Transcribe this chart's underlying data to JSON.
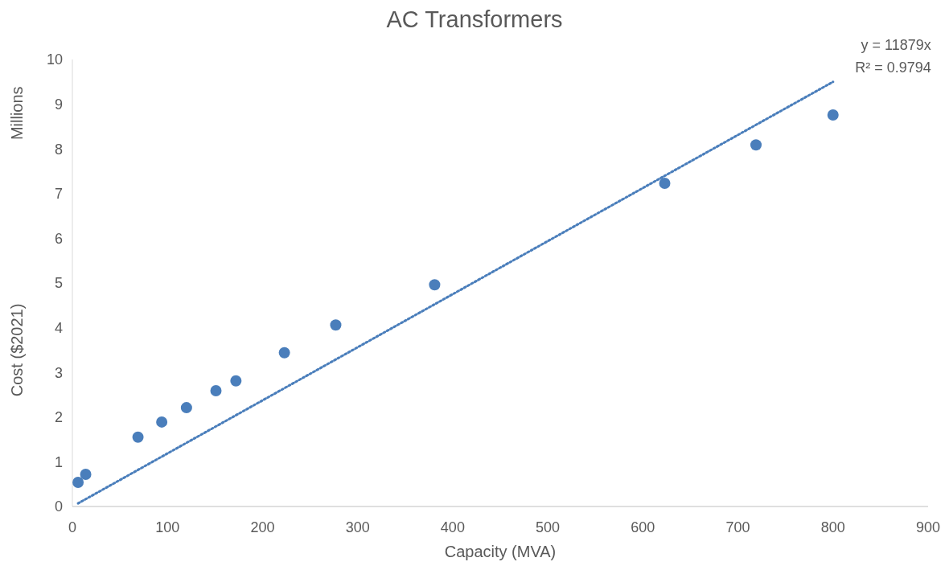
{
  "chart_data": {
    "type": "scatter",
    "title": "AC Transformers",
    "xlabel": "Capacity (MVA)",
    "ylabel": "Cost ($2021)",
    "annotations": [
      "Millions",
      "y = 11879x",
      "R² = 0.9794"
    ],
    "xlim": [
      0,
      900
    ],
    "xticks": [
      0,
      100,
      200,
      300,
      400,
      500,
      600,
      700,
      800,
      900
    ],
    "ylim": [
      0,
      10
    ],
    "yticks": [
      0,
      1,
      2,
      3,
      4,
      5,
      6,
      7,
      8,
      9,
      10
    ],
    "grid": false,
    "marker": "circle",
    "series": [
      {
        "color": "#4a7ebb",
        "x": [
          6,
          14,
          69,
          94,
          120,
          151,
          172,
          223,
          277,
          381,
          623,
          719,
          800
        ],
        "values": [
          0.54,
          0.72,
          1.55,
          1.89,
          2.21,
          2.59,
          2.81,
          3.44,
          4.06,
          4.96,
          7.23,
          8.09,
          8.76
        ]
      },
      {
        "type": "line",
        "color": "#4a7ebb",
        "line_style": "dotted",
        "marker": "none",
        "x": [
          6,
          800
        ],
        "values": [
          0.07,
          9.5
        ]
      }
    ]
  }
}
